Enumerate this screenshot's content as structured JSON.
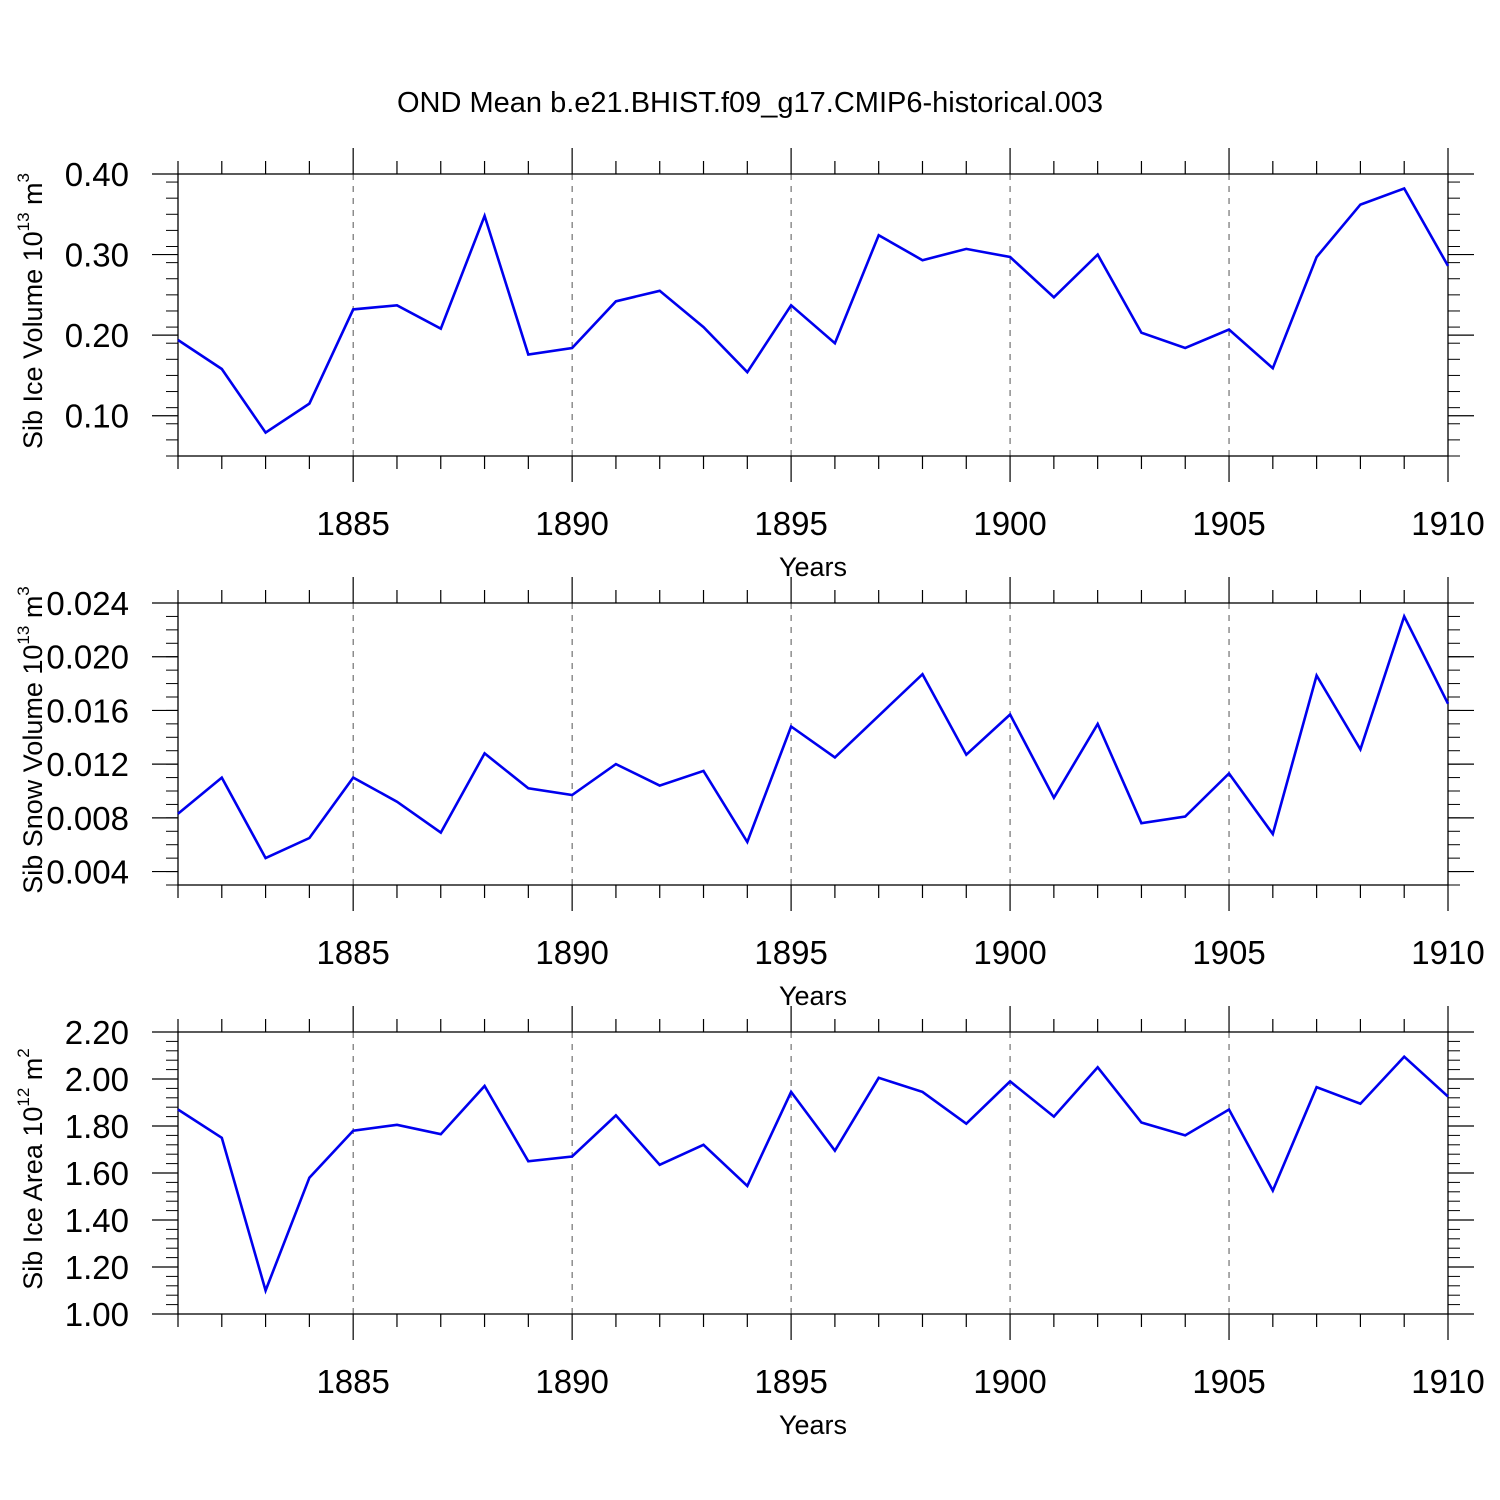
{
  "title": "OND Mean b.e21.BHIST.f09_g17.CMIP6-historical.003",
  "line_color": "#0000ee",
  "chart_data": [
    {
      "type": "line",
      "name": "sib-ice-volume",
      "xlabel": "Years",
      "ylabel_main": "Sib Ice Volume 10",
      "ylabel_exp": "13",
      "ylabel_unit": " m",
      "ylabel_unit_exp": "3",
      "xlim": [
        1881,
        1910
      ],
      "ylim": [
        0.05,
        0.4
      ],
      "x_major_ticks": [
        1885,
        1890,
        1895,
        1900,
        1905,
        1910
      ],
      "x_tick_labels": [
        "1885",
        "1890",
        "1895",
        "1900",
        "1905",
        "1910"
      ],
      "y_major_ticks": [
        0.1,
        0.2,
        0.3,
        0.4
      ],
      "y_tick_labels": [
        "0.10",
        "0.20",
        "0.30",
        "0.40"
      ],
      "y_minor_step": 0.02,
      "x": [
        1881,
        1882,
        1883,
        1884,
        1885,
        1886,
        1887,
        1888,
        1889,
        1890,
        1891,
        1892,
        1893,
        1894,
        1895,
        1896,
        1897,
        1898,
        1899,
        1900,
        1901,
        1902,
        1903,
        1904,
        1905,
        1906,
        1907,
        1908,
        1909,
        1910
      ],
      "y": [
        0.194,
        0.158,
        0.079,
        0.115,
        0.232,
        0.237,
        0.208,
        0.348,
        0.176,
        0.184,
        0.242,
        0.255,
        0.21,
        0.154,
        0.237,
        0.19,
        0.324,
        0.293,
        0.307,
        0.297,
        0.247,
        0.3,
        0.203,
        0.184,
        0.207,
        0.159,
        0.297,
        0.362,
        0.382,
        0.286
      ]
    },
    {
      "type": "line",
      "name": "sib-snow-volume",
      "xlabel": "Years",
      "ylabel_main": "Sib Snow Volume 10",
      "ylabel_exp": "13",
      "ylabel_unit": " m",
      "ylabel_unit_exp": "3",
      "xlim": [
        1881,
        1910
      ],
      "ylim": [
        0.003,
        0.024
      ],
      "x_major_ticks": [
        1885,
        1890,
        1895,
        1900,
        1905,
        1910
      ],
      "x_tick_labels": [
        "1885",
        "1890",
        "1895",
        "1900",
        "1905",
        "1910"
      ],
      "y_major_ticks": [
        0.004,
        0.008,
        0.012,
        0.016,
        0.02,
        0.024
      ],
      "y_tick_labels": [
        "0.004",
        "0.008",
        "0.012",
        "0.016",
        "0.020",
        "0.024"
      ],
      "y_minor_step": 0.001,
      "x": [
        1881,
        1882,
        1883,
        1884,
        1885,
        1886,
        1887,
        1888,
        1889,
        1890,
        1891,
        1892,
        1893,
        1894,
        1895,
        1896,
        1897,
        1898,
        1899,
        1900,
        1901,
        1902,
        1903,
        1904,
        1905,
        1906,
        1907,
        1908,
        1909,
        1910
      ],
      "y": [
        0.0083,
        0.011,
        0.005,
        0.0065,
        0.011,
        0.0092,
        0.0069,
        0.0128,
        0.0102,
        0.0097,
        0.012,
        0.0104,
        0.0115,
        0.0062,
        0.0148,
        0.0125,
        0.0156,
        0.0187,
        0.0127,
        0.0157,
        0.0095,
        0.015,
        0.0076,
        0.0081,
        0.0113,
        0.0068,
        0.0186,
        0.0131,
        0.023,
        0.0165
      ]
    },
    {
      "type": "line",
      "name": "sib-ice-area",
      "xlabel": "Years",
      "ylabel_main": "Sib Ice Area 10",
      "ylabel_exp": "12",
      "ylabel_unit": " m",
      "ylabel_unit_exp": "2",
      "xlim": [
        1881,
        1910
      ],
      "ylim": [
        1.0,
        2.2
      ],
      "x_major_ticks": [
        1885,
        1890,
        1895,
        1900,
        1905,
        1910
      ],
      "x_tick_labels": [
        "1885",
        "1890",
        "1895",
        "1900",
        "1905",
        "1910"
      ],
      "y_major_ticks": [
        1.0,
        1.2,
        1.4,
        1.6,
        1.8,
        2.0,
        2.2
      ],
      "y_tick_labels": [
        "1.00",
        "1.20",
        "1.40",
        "1.60",
        "1.80",
        "2.00",
        "2.20"
      ],
      "y_minor_step": 0.04,
      "x": [
        1881,
        1882,
        1883,
        1884,
        1885,
        1886,
        1887,
        1888,
        1889,
        1890,
        1891,
        1892,
        1893,
        1894,
        1895,
        1896,
        1897,
        1898,
        1899,
        1900,
        1901,
        1902,
        1903,
        1904,
        1905,
        1906,
        1907,
        1908,
        1909,
        1910
      ],
      "y": [
        1.87,
        1.75,
        1.1,
        1.58,
        1.78,
        1.805,
        1.765,
        1.97,
        1.65,
        1.67,
        1.845,
        1.635,
        1.72,
        1.545,
        1.945,
        1.695,
        2.005,
        1.945,
        1.81,
        1.99,
        1.84,
        2.05,
        1.815,
        1.76,
        1.87,
        1.525,
        1.965,
        1.895,
        2.095,
        1.925
      ]
    }
  ]
}
